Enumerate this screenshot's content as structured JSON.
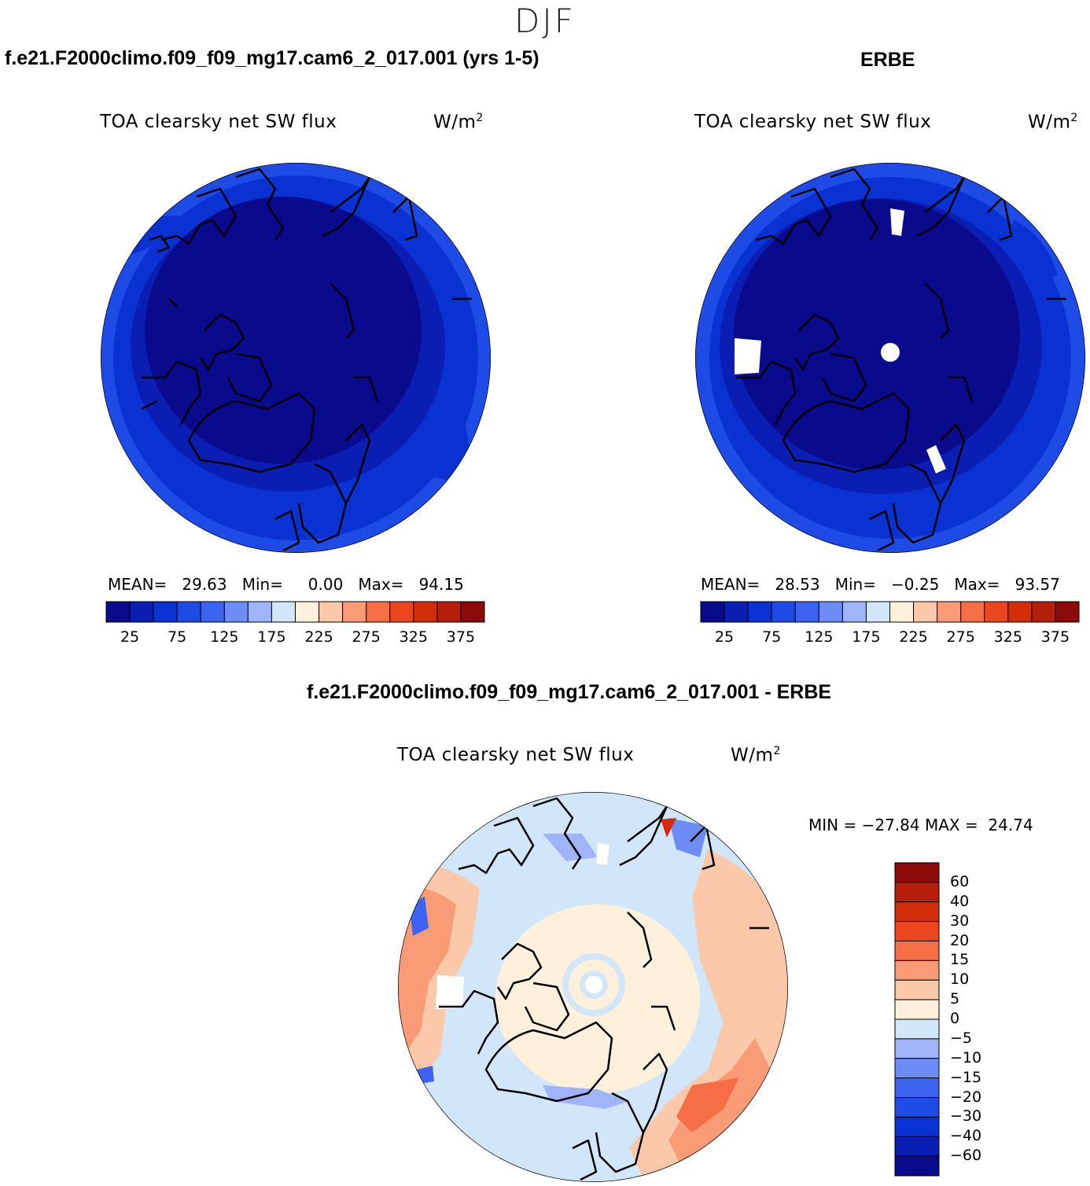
{
  "season": "DJF",
  "panels": [
    {
      "case": "f.e21.F2000climo.f09_f09_mg17.cam6_2_017.001 (yrs 1-5)",
      "field": "TOA clearsky net SW flux",
      "units_base": "W/m",
      "units_exp": "2",
      "stats_label_mean": "MEAN=",
      "mean": "29.63",
      "stats_label_min": "Min=",
      "min": "0.00",
      "stats_label_max": "Max=",
      "max": "94.15"
    },
    {
      "case": "ERBE",
      "field": "TOA clearsky net SW flux",
      "units_base": "W/m",
      "units_exp": "2",
      "stats_label_mean": "MEAN=",
      "mean": "28.53",
      "stats_label_min": "Min=",
      "min": "−0.25",
      "stats_label_max": "Max=",
      "max": "93.57"
    }
  ],
  "diff_panel": {
    "case": "f.e21.F2000climo.f09_f09_mg17.cam6_2_017.001 - ERBE",
    "field": "TOA clearsky net SW flux",
    "units_base": "W/m",
    "units_exp": "2",
    "minmax": "MIN = −27.84 MAX =  24.74"
  },
  "colorbar_main": {
    "colors": [
      "#0a0a8c",
      "#0a1eb4",
      "#0a32d2",
      "#1e4be6",
      "#3c64f0",
      "#6e8cf5",
      "#a0b4fa",
      "#d2e6fa",
      "#fff0dc",
      "#fcc8aa",
      "#fa9b78",
      "#f56e46",
      "#eb461e",
      "#d22d0a",
      "#b41e0a",
      "#8c0a0a"
    ],
    "tick_labels": [
      "25",
      "75",
      "125",
      "175",
      "225",
      "275",
      "325",
      "375"
    ]
  },
  "colorbar_diff": {
    "colors": [
      "#8c0a0a",
      "#b41e0a",
      "#d22d0a",
      "#eb461e",
      "#f56e46",
      "#fa9b78",
      "#fcc8aa",
      "#fff0dc",
      "#d2e6fa",
      "#a0b4fa",
      "#6e8cf5",
      "#3c64f0",
      "#1e4be6",
      "#0a32d2",
      "#0a1eb4",
      "#0a0a8c"
    ],
    "tick_labels": [
      "60",
      "40",
      "30",
      "20",
      "15",
      "10",
      "5",
      "0",
      "−5",
      "−10",
      "−15",
      "−20",
      "−30",
      "−40",
      "−60"
    ]
  }
}
